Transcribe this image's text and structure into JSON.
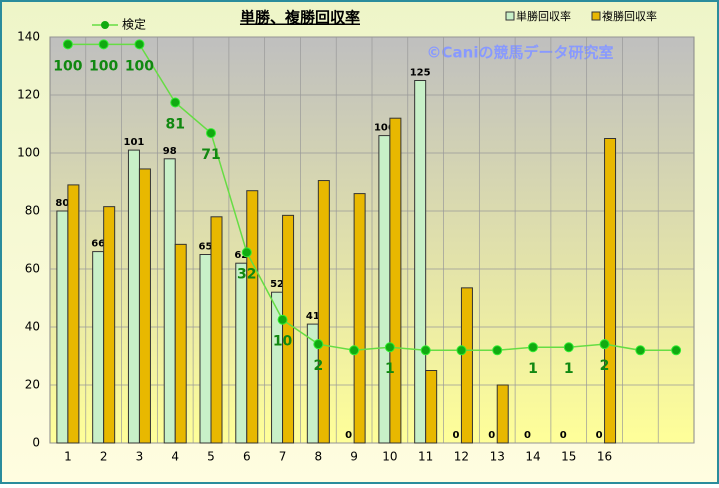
{
  "chart_data": {
    "type": "bar",
    "title": "単勝、複勝回収率",
    "annotation": "©Caniの競馬データ研究室",
    "categories": [
      "1",
      "2",
      "3",
      "4",
      "5",
      "6",
      "7",
      "8",
      "9",
      "10",
      "11",
      "12",
      "13",
      "14",
      "15",
      "16",
      null,
      null
    ],
    "series": [
      {
        "name": "単勝回収率",
        "color": "#c8f0c8",
        "values": [
          80,
          66,
          101,
          98,
          65,
          62,
          52,
          41,
          0,
          106,
          125,
          0,
          0,
          0,
          0,
          0,
          null,
          null
        ]
      },
      {
        "name": "複勝回収率",
        "color": "#e8b800",
        "values": [
          89,
          81.5,
          94.5,
          68.5,
          78,
          87,
          78.5,
          90.5,
          86,
          112,
          25,
          53.5,
          20,
          0,
          0,
          105,
          null,
          null
        ]
      },
      {
        "name": "検定",
        "type": "line",
        "axis": "y2",
        "color": "#66dd44",
        "values": [
          100,
          100,
          100,
          81,
          71,
          32,
          10,
          2,
          0,
          1,
          0,
          0,
          0,
          1,
          1,
          2,
          0,
          0
        ],
        "value_labels": [
          "100",
          "100",
          "100",
          "81",
          "71",
          "32",
          "10",
          "2",
          null,
          "1",
          null,
          null,
          null,
          "1",
          "1",
          "2",
          null,
          null
        ]
      }
    ],
    "ylim": [
      0,
      140
    ],
    "yticks": [
      0,
      20,
      40,
      60,
      80,
      100,
      120,
      140
    ],
    "y2lim": [
      -30.3,
      102.4
    ],
    "grid": true
  }
}
